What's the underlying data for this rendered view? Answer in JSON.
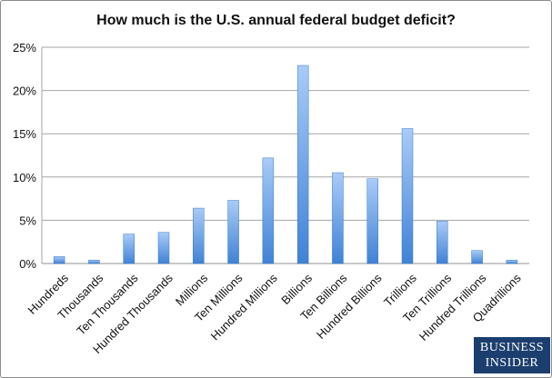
{
  "chart_data": {
    "type": "bar",
    "title": "How much is the U.S. annual federal budget deficit?",
    "xlabel": "",
    "ylabel": "",
    "ylim": [
      0,
      25
    ],
    "yticks": [
      "0%",
      "5%",
      "10%",
      "15%",
      "20%",
      "25%"
    ],
    "ytick_values": [
      0,
      5,
      10,
      15,
      20,
      25
    ],
    "grid": true,
    "categories": [
      "Hundreds",
      "Thousands",
      "Ten Thousands",
      "Hundred Thousands",
      "Millions",
      "Ten Millions",
      "Hundred Millions",
      "Billions",
      "Ten Billions",
      "Hundred Billions",
      "Trillions",
      "Ten Trillions",
      "Hundred Trillions",
      "Quadrillions"
    ],
    "values": [
      0.8,
      0.4,
      3.4,
      3.6,
      6.4,
      7.3,
      12.2,
      22.9,
      10.5,
      9.8,
      15.6,
      4.9,
      1.5,
      0.4
    ],
    "unit": "%",
    "bar_color_top": "#a9cbf7",
    "bar_color_bottom": "#3f82d6",
    "grid_color": "#a6a6a6"
  },
  "logo": {
    "line1": "BUSINESS",
    "line2": "INSIDER",
    "bg_color": "#1b3e6f"
  }
}
